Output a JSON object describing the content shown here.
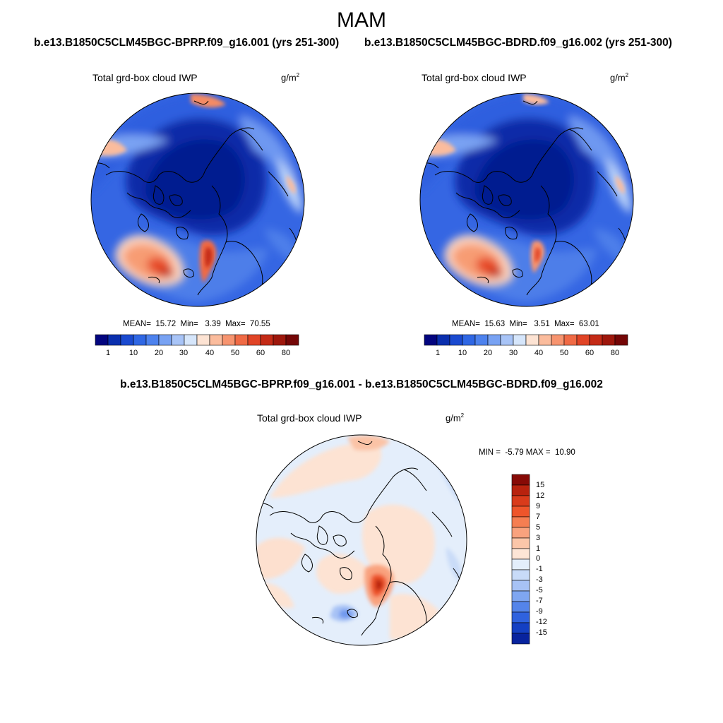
{
  "season": "MAM",
  "panels": [
    {
      "case_title": "b.e13.B1850C5CLM45BGC-BPRP.f09_g16.001 (yrs 251-300)",
      "variable": "Total grd-box cloud IWP",
      "units": "g/m",
      "units_exp": "2",
      "stats_text": "MEAN=  15.72  Min=   3.39  Max=  70.55",
      "mean": 15.72,
      "min": 3.39,
      "max": 70.55
    },
    {
      "case_title": "b.e13.B1850C5CLM45BGC-BDRD.f09_g16.002 (yrs 251-300)",
      "variable": "Total grd-box cloud IWP",
      "units": "g/m",
      "units_exp": "2",
      "stats_text": "MEAN=  15.63  Min=   3.51  Max=  63.01",
      "mean": 15.63,
      "min": 3.51,
      "max": 63.01
    }
  ],
  "difference": {
    "title": "b.e13.B1850C5CLM45BGC-BPRP.f09_g16.001 - b.e13.B1850C5CLM45BGC-BDRD.f09_g16.002",
    "variable": "Total grd-box cloud IWP",
    "units": "g/m",
    "units_exp": "2",
    "stats_text": "MIN =  -5.79 MAX =  10.90",
    "min": -5.79,
    "max": 10.9
  },
  "colorbar_abs": {
    "labels": [
      "1",
      "10",
      "20",
      "30",
      "40",
      "50",
      "60",
      "80"
    ],
    "colors": [
      "#03057f",
      "#0a2fae",
      "#1a4ad0",
      "#2f67e4",
      "#4d82ee",
      "#78a2f3",
      "#a8c4f7",
      "#d6e6fb",
      "#fde3d3",
      "#fbbc9d",
      "#f7946f",
      "#f06a45",
      "#e14426",
      "#c42a16",
      "#9e170c",
      "#740606"
    ]
  },
  "colorbar_diff": {
    "labels": [
      "15",
      "12",
      "9",
      "7",
      "5",
      "3",
      "1",
      "0",
      "-1",
      "-3",
      "-5",
      "-7",
      "-9",
      "-12",
      "-15"
    ],
    "colors": [
      "#870a06",
      "#b8220e",
      "#d93b1b",
      "#ee552b",
      "#f57e52",
      "#f9a27e",
      "#fbc6a9",
      "#fde5d6",
      "#e3eefb",
      "#c8dbf8",
      "#a7c2f5",
      "#7fa6f1",
      "#5484ea",
      "#2f62de",
      "#1440c3",
      "#08239e"
    ]
  }
}
